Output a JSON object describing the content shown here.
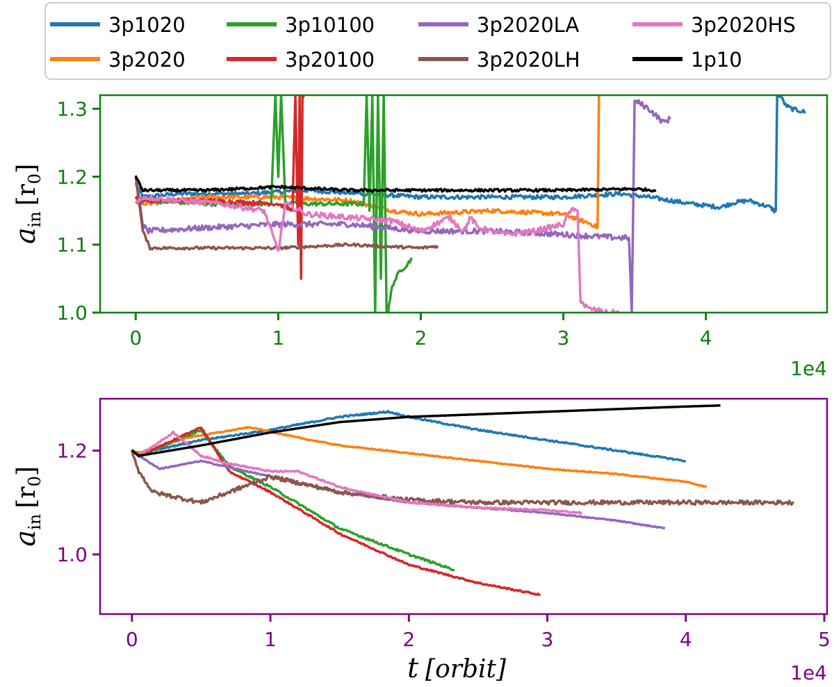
{
  "chart_data": [
    {
      "type": "line",
      "ylabel_symbol": "a",
      "ylabel_sub": "in",
      "ylabel_unit": "[r",
      "ylabel_unit_sub": "0",
      "ylabel_unit_close": "]",
      "xlabel": "",
      "x_offset_label": "1e4",
      "axis_color": "#0f7d0f",
      "xlim": [
        -0.25,
        4.85
      ],
      "ylim": [
        1.0,
        1.32
      ],
      "xticks": [
        0,
        1,
        2,
        3,
        4
      ],
      "yticks": [
        1.0,
        1.1,
        1.2,
        1.3
      ],
      "ytick_labels": [
        "1.0",
        "1.1",
        "1.2",
        "1.3"
      ],
      "series": [
        {
          "name": "3p1020",
          "color": "#1f77b4",
          "noise": 0.003,
          "x": [
            0,
            0.05,
            0.3,
            0.8,
            1.2,
            1.6,
            2.0,
            2.5,
            3.0,
            3.4,
            3.6,
            3.9,
            4.1,
            4.2,
            4.3,
            4.45,
            4.48,
            4.49,
            4.5,
            4.52,
            4.56,
            4.6,
            4.7
          ],
          "y": [
            1.19,
            1.17,
            1.175,
            1.175,
            1.18,
            1.175,
            1.17,
            1.17,
            1.17,
            1.175,
            1.17,
            1.16,
            1.155,
            1.162,
            1.165,
            1.155,
            1.15,
            1.15,
            1.32,
            1.32,
            1.305,
            1.3,
            1.295
          ]
        },
        {
          "name": "3p2020",
          "color": "#ff7f0e",
          "noise": 0.003,
          "x": [
            0,
            0.05,
            0.5,
            1.0,
            1.5,
            1.8,
            2.0,
            2.5,
            3.0,
            3.2,
            3.24,
            3.25,
            3.26
          ],
          "y": [
            1.17,
            1.16,
            1.17,
            1.17,
            1.165,
            1.15,
            1.145,
            1.15,
            1.145,
            1.13,
            1.125,
            1.32,
            1.32
          ]
        },
        {
          "name": "3p10100",
          "color": "#2ca02c",
          "noise": 0.003,
          "x": [
            0,
            0.05,
            0.5,
            0.95,
            0.98,
            1.0,
            1.02,
            1.05,
            1.5,
            1.6,
            1.62,
            1.64,
            1.66,
            1.68,
            1.7,
            1.72,
            1.74,
            1.76,
            1.77,
            1.8,
            1.85,
            1.9,
            1.94
          ],
          "y": [
            1.16,
            1.165,
            1.16,
            1.16,
            1.32,
            1.2,
            1.32,
            1.16,
            1.16,
            1.16,
            1.32,
            1.15,
            1.32,
            1.0,
            1.32,
            1.05,
            1.32,
            1.0,
            1.0,
            1.04,
            1.06,
            1.07,
            1.08
          ]
        },
        {
          "name": "3p20100",
          "color": "#d62728",
          "noise": 0.003,
          "x": [
            0,
            0.05,
            0.5,
            1.0,
            1.1,
            1.12,
            1.14,
            1.15,
            1.16,
            1.17,
            1.18
          ],
          "y": [
            1.17,
            1.165,
            1.165,
            1.16,
            1.15,
            1.32,
            1.1,
            1.32,
            1.05,
            1.32,
            1.32
          ]
        },
        {
          "name": "3p2020LA",
          "color": "#9467bd",
          "noise": 0.004,
          "x": [
            0,
            0.05,
            0.08,
            0.5,
            1.0,
            1.5,
            2.0,
            2.5,
            3.0,
            3.4,
            3.46,
            3.48,
            3.5,
            3.52,
            3.6,
            3.7,
            3.75
          ],
          "y": [
            1.2,
            1.13,
            1.12,
            1.125,
            1.13,
            1.13,
            1.12,
            1.12,
            1.115,
            1.11,
            1.11,
            1.0,
            1.31,
            1.31,
            1.3,
            1.28,
            1.285
          ]
        },
        {
          "name": "3p2020LH",
          "color": "#8c564b",
          "noise": 0.002,
          "x": [
            0,
            0.05,
            0.1,
            0.5,
            1.0,
            1.5,
            2.0,
            2.12
          ],
          "y": [
            1.2,
            1.12,
            1.095,
            1.095,
            1.095,
            1.1,
            1.095,
            1.098
          ]
        },
        {
          "name": "3p2020HS",
          "color": "#e377c2",
          "noise": 0.004,
          "x": [
            0,
            0.05,
            0.3,
            0.6,
            0.9,
            1.0,
            1.05,
            1.2,
            1.5,
            1.8,
            2.0,
            2.2,
            2.3,
            2.35,
            2.4,
            2.6,
            2.8,
            3.0,
            3.05,
            3.1,
            3.12,
            3.15,
            3.18,
            3.2,
            3.3,
            3.4
          ],
          "y": [
            1.16,
            1.17,
            1.165,
            1.16,
            1.15,
            1.09,
            1.16,
            1.145,
            1.14,
            1.135,
            1.12,
            1.14,
            1.12,
            1.14,
            1.125,
            1.115,
            1.12,
            1.13,
            1.15,
            1.15,
            1.02,
            1.01,
            1.005,
            1.005,
            1.0,
            1.0
          ]
        },
        {
          "name": "1p10",
          "color": "#000000",
          "noise": 0.002,
          "x": [
            0,
            0.05,
            0.1,
            0.5,
            1.0,
            1.5,
            2.0,
            2.5,
            3.0,
            3.5,
            3.65
          ],
          "y": [
            1.2,
            1.18,
            1.18,
            1.18,
            1.185,
            1.18,
            1.18,
            1.18,
            1.18,
            1.182,
            1.18
          ]
        }
      ]
    },
    {
      "type": "line",
      "ylabel_symbol": "a",
      "ylabel_sub": "in",
      "ylabel_unit": "[r",
      "ylabel_unit_sub": "0",
      "ylabel_unit_close": "]",
      "xlabel_symbol": "t",
      "xlabel_unit": "[orbit]",
      "x_offset_label": "1e4",
      "axis_color": "#800080",
      "xlim": [
        -0.23,
        5.02
      ],
      "ylim": [
        0.885,
        1.3
      ],
      "xticks": [
        0,
        1,
        2,
        3,
        4,
        5
      ],
      "yticks": [
        1.0,
        1.2
      ],
      "ytick_labels": [
        "1.0",
        "1.2"
      ],
      "series": [
        {
          "name": "3p1020",
          "color": "#1f77b4",
          "noise": 0.0015,
          "x": [
            0,
            0.05,
            0.5,
            1.0,
            1.5,
            1.85,
            2.0,
            2.5,
            3.0,
            3.5,
            4.0
          ],
          "y": [
            1.2,
            1.195,
            1.22,
            1.24,
            1.265,
            1.275,
            1.265,
            1.24,
            1.22,
            1.2,
            1.18
          ]
        },
        {
          "name": "3p2020",
          "color": "#ff7f0e",
          "noise": 0.001,
          "x": [
            0,
            0.05,
            0.4,
            0.85,
            1.2,
            1.5,
            2.0,
            2.5,
            3.0,
            3.5,
            4.0,
            4.15
          ],
          "y": [
            1.2,
            1.195,
            1.225,
            1.245,
            1.225,
            1.21,
            1.195,
            1.18,
            1.165,
            1.155,
            1.14,
            1.13
          ]
        },
        {
          "name": "3p10100",
          "color": "#2ca02c",
          "noise": 0.002,
          "x": [
            0,
            0.05,
            0.5,
            0.7,
            1.0,
            1.5,
            2.0,
            2.33
          ],
          "y": [
            1.2,
            1.19,
            1.24,
            1.17,
            1.13,
            1.05,
            1.0,
            0.97
          ]
        },
        {
          "name": "3p20100",
          "color": "#d62728",
          "noise": 0.0015,
          "x": [
            0,
            0.05,
            0.5,
            0.7,
            1.0,
            1.5,
            2.0,
            2.5,
            2.95
          ],
          "y": [
            1.2,
            1.19,
            1.245,
            1.16,
            1.12,
            1.04,
            0.98,
            0.945,
            0.922
          ]
        },
        {
          "name": "3p2020LA",
          "color": "#9467bd",
          "noise": 0.001,
          "x": [
            0,
            0.05,
            0.2,
            0.5,
            1.0,
            1.5,
            2.0,
            2.5,
            3.0,
            3.5,
            3.85
          ],
          "y": [
            1.2,
            1.19,
            1.165,
            1.18,
            1.15,
            1.12,
            1.1,
            1.09,
            1.08,
            1.065,
            1.05
          ]
        },
        {
          "name": "3p2020LH",
          "color": "#8c564b",
          "noise": 0.004,
          "x": [
            0,
            0.05,
            0.15,
            0.5,
            0.8,
            1.0,
            1.5,
            2.0,
            2.5,
            3.0,
            3.5,
            4.0,
            4.5,
            4.78
          ],
          "y": [
            1.2,
            1.16,
            1.12,
            1.1,
            1.13,
            1.15,
            1.12,
            1.105,
            1.1,
            1.1,
            1.1,
            1.1,
            1.1,
            1.1
          ]
        },
        {
          "name": "3p2020HS",
          "color": "#e377c2",
          "noise": 0.0015,
          "x": [
            0,
            0.05,
            0.3,
            0.5,
            0.7,
            1.0,
            1.2,
            1.5,
            2.0,
            2.5,
            3.0,
            3.25
          ],
          "y": [
            1.2,
            1.19,
            1.235,
            1.19,
            1.175,
            1.16,
            1.16,
            1.13,
            1.1,
            1.09,
            1.085,
            1.08
          ]
        },
        {
          "name": "1p10",
          "color": "#000000",
          "noise": 0.0,
          "x": [
            0,
            0.05,
            0.5,
            1.0,
            1.5,
            2.0,
            2.5,
            3.0,
            3.5,
            4.0,
            4.25
          ],
          "y": [
            1.2,
            1.19,
            1.21,
            1.235,
            1.255,
            1.265,
            1.27,
            1.275,
            1.28,
            1.285,
            1.287
          ]
        }
      ]
    }
  ],
  "legend": [
    {
      "name": "3p1020",
      "color": "#1f77b4"
    },
    {
      "name": "3p10100",
      "color": "#2ca02c"
    },
    {
      "name": "3p2020LA",
      "color": "#9467bd"
    },
    {
      "name": "3p2020HS",
      "color": "#e377c2"
    },
    {
      "name": "3p2020",
      "color": "#ff7f0e"
    },
    {
      "name": "3p20100",
      "color": "#d62728"
    },
    {
      "name": "3p2020LH",
      "color": "#8c564b"
    },
    {
      "name": "1p10",
      "color": "#000000"
    }
  ]
}
